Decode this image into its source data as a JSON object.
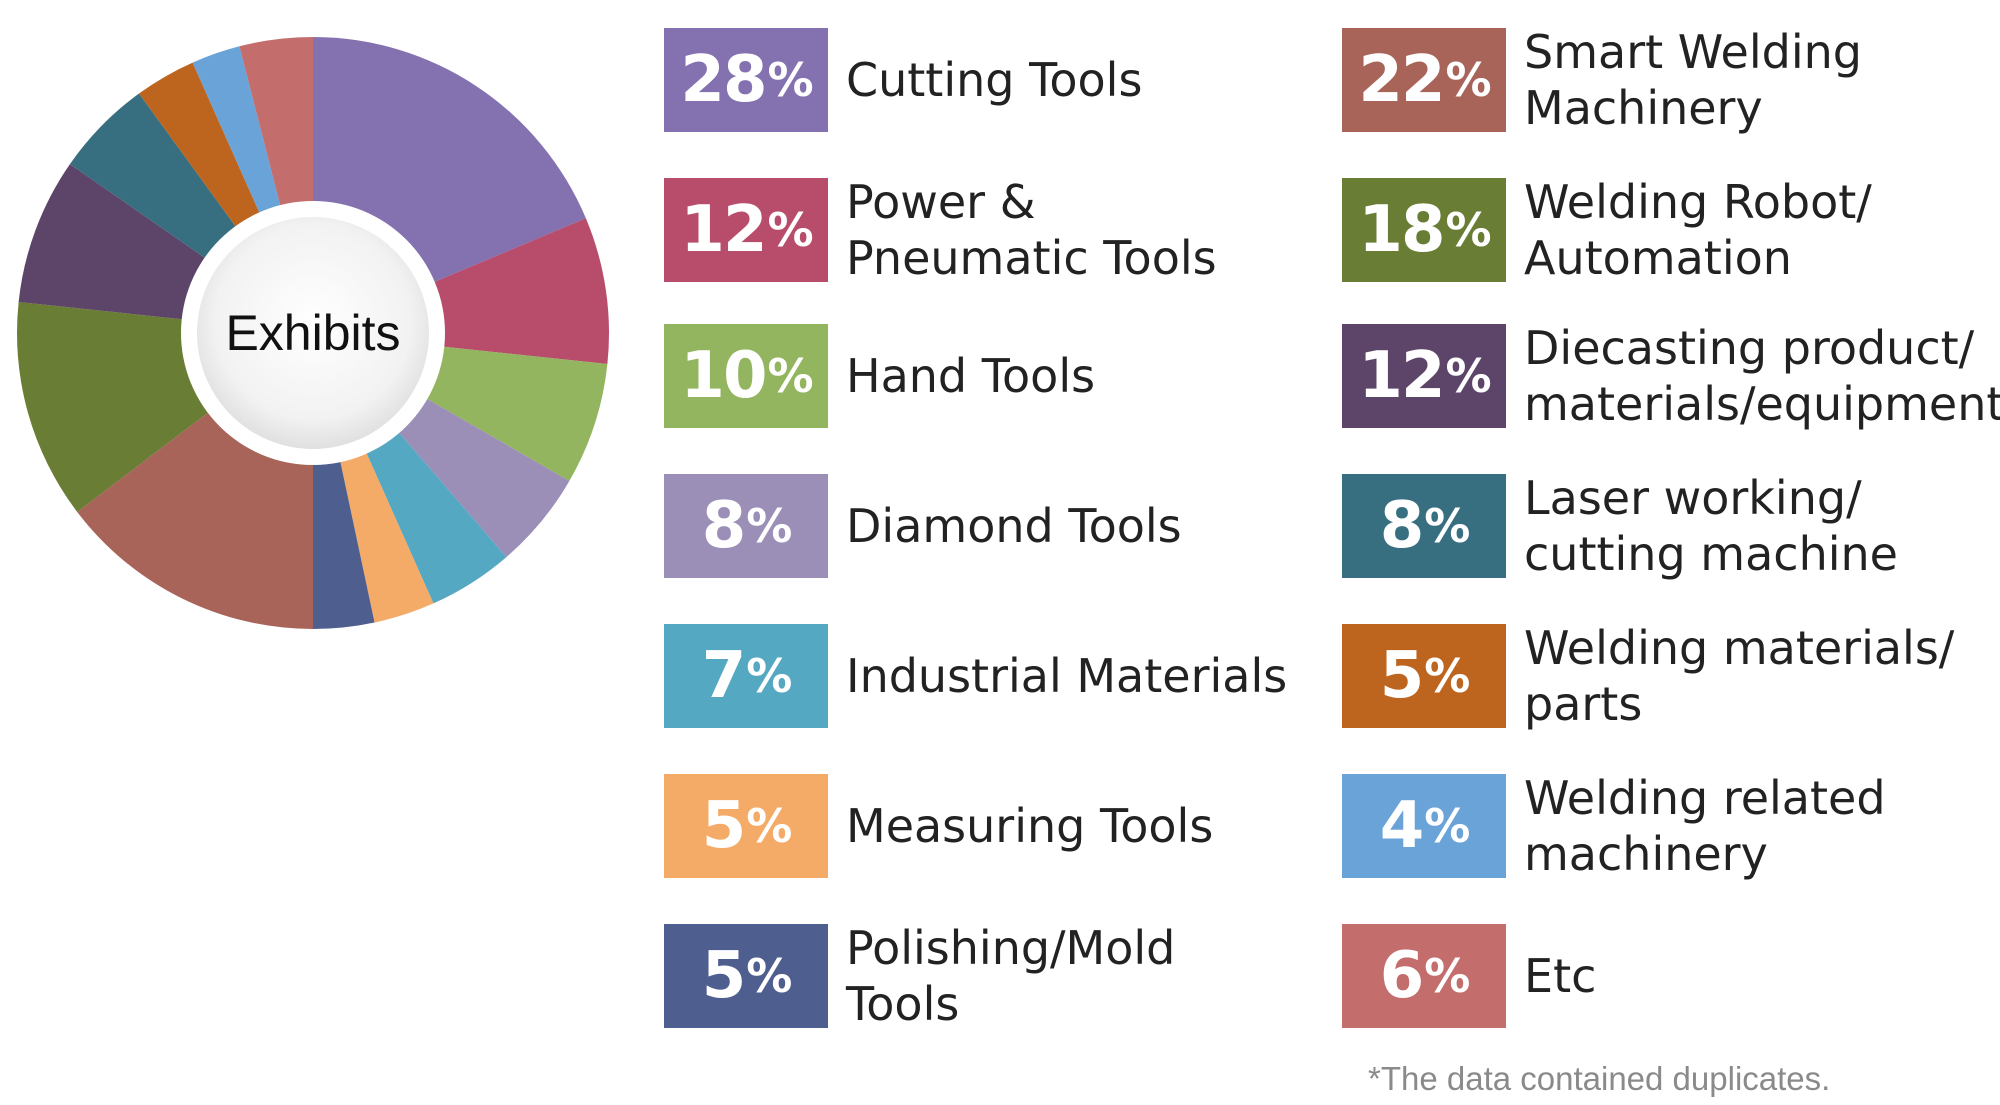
{
  "chart_data": {
    "type": "pie",
    "center_label": "Exhibits",
    "slices": [
      {
        "label": "Cutting Tools",
        "value": 28,
        "display": "28",
        "color": "#8471b0"
      },
      {
        "label": "Power & Pneumatic Tools",
        "value": 12,
        "display": "12",
        "color": "#b84c6b"
      },
      {
        "label": "Hand Tools",
        "value": 10,
        "display": "10",
        "color": "#93b55f"
      },
      {
        "label": "Diamond Tools",
        "value": 8,
        "display": "8",
        "color": "#9b8fb8"
      },
      {
        "label": "Industrial Materials",
        "value": 7,
        "display": "7",
        "color": "#55a8c2"
      },
      {
        "label": "Measuring Tools",
        "value": 5,
        "display": "5",
        "color": "#f5ab68"
      },
      {
        "label": "Polishing/Mold Tools",
        "value": 5,
        "display": "5",
        "color": "#4e5e8f"
      },
      {
        "label": "Smart Welding Machinery",
        "value": 22,
        "display": "22",
        "color": "#a9645a"
      },
      {
        "label": "Welding Robot/ Automation",
        "value": 18,
        "display": "18",
        "color": "#6a7d34"
      },
      {
        "label": "Diecasting product/ materials/equipments",
        "value": 12,
        "display": "12",
        "color": "#5c4569"
      },
      {
        "label": "Laser working/ cutting machine",
        "value": 8,
        "display": "8",
        "color": "#386f80"
      },
      {
        "label": "Welding materials/ parts",
        "value": 5,
        "display": "5",
        "color": "#bd651f"
      },
      {
        "label": "Welding related machinery",
        "value": 4,
        "display": "4",
        "color": "#6aa3d8"
      },
      {
        "label": "Etc",
        "value": 6,
        "display": "6",
        "color": "#c46d6d"
      }
    ]
  },
  "legend": {
    "left": [
      {
        "pct": "28",
        "text": "Cutting Tools",
        "color": "#8471b0"
      },
      {
        "pct": "12",
        "text": "Power & \nPneumatic Tools",
        "color": "#b84c6b"
      },
      {
        "pct": "10",
        "text": "Hand Tools",
        "color": "#93b55f"
      },
      {
        "pct": "8",
        "text": "Diamond Tools",
        "color": "#9b8fb8"
      },
      {
        "pct": "7",
        "text": "Industrial Materials",
        "color": "#55a8c2"
      },
      {
        "pct": "5",
        "text": " Measuring Tools",
        "color": "#f5ab68"
      },
      {
        "pct": "5",
        "text": "Polishing/Mold\nTools",
        "color": "#4e5e8f"
      }
    ],
    "right": [
      {
        "pct": "22",
        "text": "Smart Welding\nMachinery",
        "color": "#a9645a"
      },
      {
        "pct": "18",
        "text": "Welding Robot/\nAutomation",
        "color": "#6a7d34"
      },
      {
        "pct": "12",
        "text": "Diecasting product/\nmaterials/equipments",
        "color": "#5c4569"
      },
      {
        "pct": "8",
        "text": "Laser working/\ncutting machine",
        "color": "#386f80"
      },
      {
        "pct": "5",
        "text": "Welding materials/\nparts",
        "color": "#bd651f"
      },
      {
        "pct": "4",
        "text": "Welding related\nmachinery",
        "color": "#6aa3d8"
      },
      {
        "pct": "6",
        "text": "Etc",
        "color": "#c46d6d"
      }
    ],
    "pct_sign": "%"
  },
  "footnote": "*The data contained duplicates."
}
